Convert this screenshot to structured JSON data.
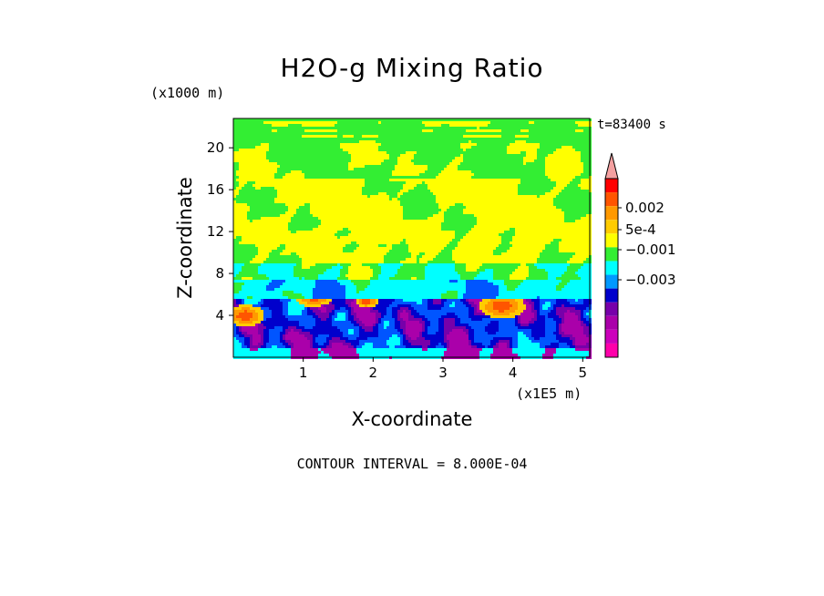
{
  "chart_data": {
    "type": "heatmap",
    "title": "H2O-g Mixing Ratio",
    "xlabel": "X-coordinate",
    "ylabel": "Z-coordinate",
    "x_unit": "(x1E5 m)",
    "y_unit": "(x1000 m)",
    "time_label": "t=83400 s",
    "contour_interval_label": "CONTOUR INTERVAL = 8.000E-04",
    "xlim": [
      0,
      5.1
    ],
    "ylim": [
      0,
      22.8
    ],
    "xticks": [
      1,
      2,
      3,
      4,
      5
    ],
    "yticks": [
      4,
      8,
      12,
      16,
      20
    ],
    "colorbar": {
      "labels": [
        "0.002",
        "5e-4",
        "−0.001",
        "−0.003"
      ],
      "colors": [
        "#ff0000",
        "#ff5500",
        "#ff9900",
        "#ffcc00",
        "#ffff00",
        "#33ee33",
        "#00ffff",
        "#0099ff",
        "#0000cc",
        "#7700aa",
        "#aa00aa",
        "#cc00bb",
        "#ff00aa"
      ],
      "top_color": "#f4a0a0"
    },
    "field_note": "Vertical slice of water vapour mixing ratio; yellow upper-troposphere, green above and around, cyan/blue/purple turbulent boundary layer below ~5 km, orange pockets near x=0.1,0.8,4.0"
  }
}
